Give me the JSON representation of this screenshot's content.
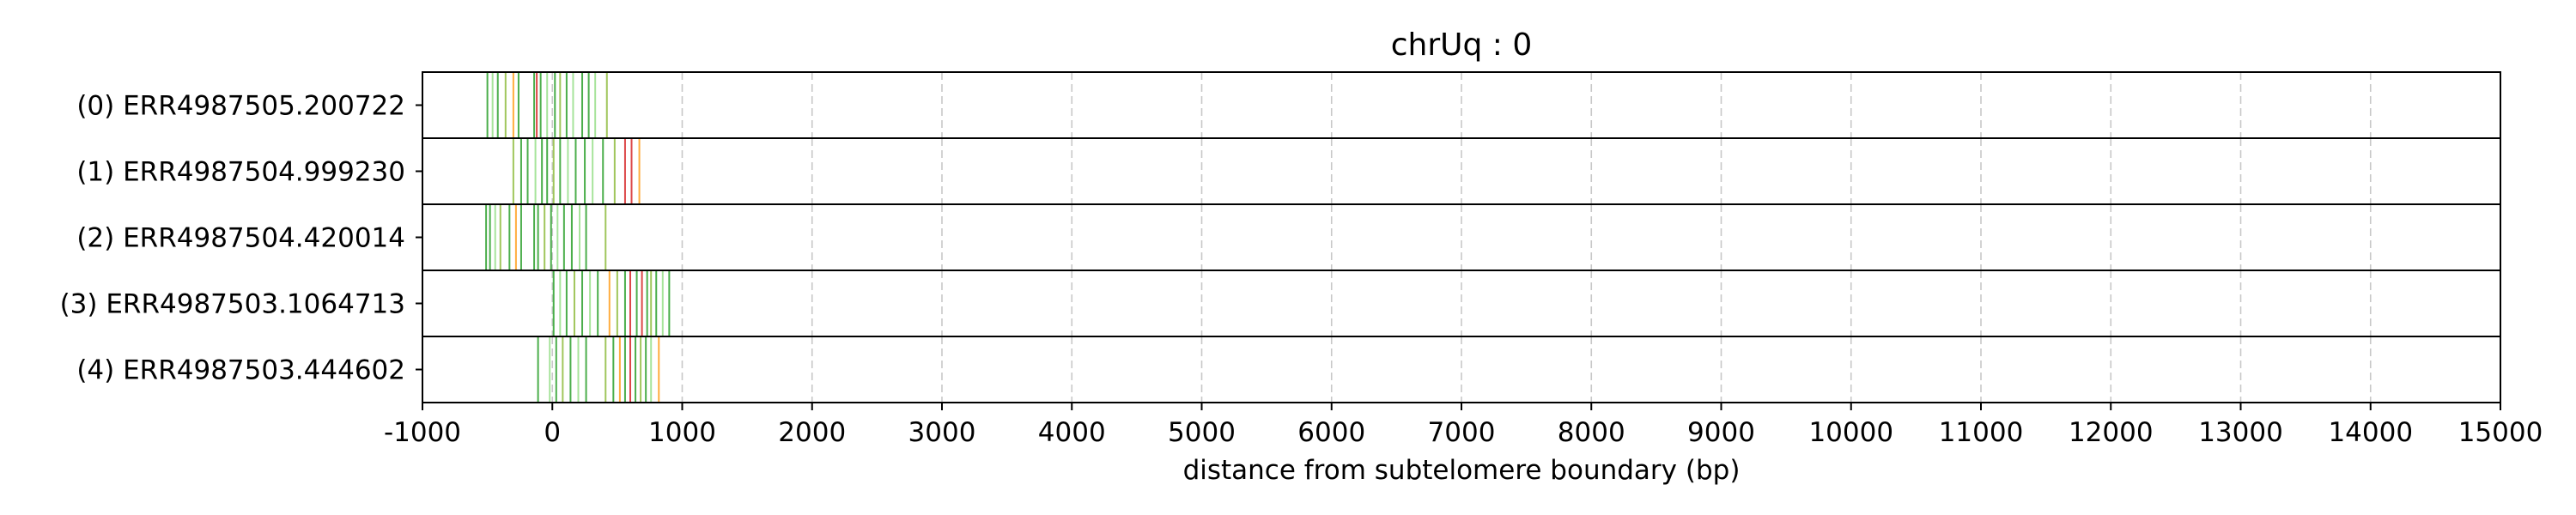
{
  "chart_data": {
    "type": "tick-track",
    "title": "chrUq : 0",
    "xlabel": "distance from subtelomere boundary (bp)",
    "xlim": [
      -1000,
      15000
    ],
    "xticks": [
      -1000,
      0,
      1000,
      2000,
      3000,
      4000,
      5000,
      6000,
      7000,
      8000,
      9000,
      10000,
      11000,
      12000,
      13000,
      14000,
      15000
    ],
    "xtick_labels": [
      "-1000",
      "0",
      "1000",
      "2000",
      "3000",
      "4000",
      "5000",
      "6000",
      "7000",
      "8000",
      "9000",
      "10000",
      "11000",
      "12000",
      "13000",
      "14000",
      "15000"
    ],
    "grid_x": true,
    "colors": {
      "green": "#2ca02c",
      "olive": "#8fbc3f",
      "orange": "#ff9f1c",
      "red": "#d62728",
      "lightgreen": "#98df8a",
      "grid": "#c8c8c8"
    },
    "reads": [
      {
        "label": "(0) ERR4987505.200722",
        "ticks": [
          {
            "x": -500,
            "c": "green"
          },
          {
            "x": -460,
            "c": "lightgreen"
          },
          {
            "x": -420,
            "c": "green"
          },
          {
            "x": -360,
            "c": "olive"
          },
          {
            "x": -300,
            "c": "orange"
          },
          {
            "x": -260,
            "c": "green"
          },
          {
            "x": -140,
            "c": "green"
          },
          {
            "x": -120,
            "c": "red"
          },
          {
            "x": -90,
            "c": "green"
          },
          {
            "x": -40,
            "c": "lightgreen"
          },
          {
            "x": 20,
            "c": "green"
          },
          {
            "x": 60,
            "c": "olive"
          },
          {
            "x": 110,
            "c": "green"
          },
          {
            "x": 160,
            "c": "lightgreen"
          },
          {
            "x": 230,
            "c": "green"
          },
          {
            "x": 280,
            "c": "green"
          },
          {
            "x": 330,
            "c": "lightgreen"
          },
          {
            "x": 420,
            "c": "olive"
          }
        ]
      },
      {
        "label": "(1) ERR4987504.999230",
        "ticks": [
          {
            "x": -300,
            "c": "olive"
          },
          {
            "x": -240,
            "c": "green"
          },
          {
            "x": -190,
            "c": "green"
          },
          {
            "x": -130,
            "c": "lightgreen"
          },
          {
            "x": -80,
            "c": "green"
          },
          {
            "x": -40,
            "c": "green"
          },
          {
            "x": 10,
            "c": "olive"
          },
          {
            "x": 60,
            "c": "green"
          },
          {
            "x": 120,
            "c": "lightgreen"
          },
          {
            "x": 180,
            "c": "green"
          },
          {
            "x": 250,
            "c": "green"
          },
          {
            "x": 310,
            "c": "lightgreen"
          },
          {
            "x": 390,
            "c": "green"
          },
          {
            "x": 480,
            "c": "olive"
          },
          {
            "x": 560,
            "c": "red"
          },
          {
            "x": 610,
            "c": "red"
          },
          {
            "x": 670,
            "c": "orange"
          }
        ]
      },
      {
        "label": "(2) ERR4987504.420014",
        "ticks": [
          {
            "x": -510,
            "c": "green"
          },
          {
            "x": -480,
            "c": "green"
          },
          {
            "x": -440,
            "c": "lightgreen"
          },
          {
            "x": -400,
            "c": "olive"
          },
          {
            "x": -330,
            "c": "green"
          },
          {
            "x": -280,
            "c": "orange"
          },
          {
            "x": -240,
            "c": "green"
          },
          {
            "x": -140,
            "c": "green"
          },
          {
            "x": -110,
            "c": "green"
          },
          {
            "x": -60,
            "c": "olive"
          },
          {
            "x": -10,
            "c": "green"
          },
          {
            "x": 40,
            "c": "lightgreen"
          },
          {
            "x": 90,
            "c": "green"
          },
          {
            "x": 150,
            "c": "green"
          },
          {
            "x": 210,
            "c": "lightgreen"
          },
          {
            "x": 260,
            "c": "green"
          },
          {
            "x": 410,
            "c": "olive"
          }
        ]
      },
      {
        "label": "(3) ERR4987503.1064713",
        "ticks": [
          {
            "x": 10,
            "c": "green"
          },
          {
            "x": 60,
            "c": "lightgreen"
          },
          {
            "x": 110,
            "c": "green"
          },
          {
            "x": 170,
            "c": "olive"
          },
          {
            "x": 230,
            "c": "green"
          },
          {
            "x": 290,
            "c": "lightgreen"
          },
          {
            "x": 350,
            "c": "green"
          },
          {
            "x": 440,
            "c": "orange"
          },
          {
            "x": 500,
            "c": "olive"
          },
          {
            "x": 560,
            "c": "green"
          },
          {
            "x": 600,
            "c": "red"
          },
          {
            "x": 650,
            "c": "green"
          },
          {
            "x": 690,
            "c": "red"
          },
          {
            "x": 730,
            "c": "green"
          },
          {
            "x": 760,
            "c": "olive"
          },
          {
            "x": 800,
            "c": "green"
          },
          {
            "x": 850,
            "c": "lightgreen"
          },
          {
            "x": 900,
            "c": "green"
          }
        ]
      },
      {
        "label": "(4) ERR4987503.444602",
        "ticks": [
          {
            "x": -110,
            "c": "green"
          },
          {
            "x": -20,
            "c": "lightgreen"
          },
          {
            "x": 30,
            "c": "green"
          },
          {
            "x": 80,
            "c": "olive"
          },
          {
            "x": 140,
            "c": "green"
          },
          {
            "x": 200,
            "c": "lightgreen"
          },
          {
            "x": 260,
            "c": "green"
          },
          {
            "x": 410,
            "c": "olive"
          },
          {
            "x": 470,
            "c": "green"
          },
          {
            "x": 520,
            "c": "orange"
          },
          {
            "x": 560,
            "c": "green"
          },
          {
            "x": 600,
            "c": "red"
          },
          {
            "x": 640,
            "c": "green"
          },
          {
            "x": 680,
            "c": "olive"
          },
          {
            "x": 720,
            "c": "green"
          },
          {
            "x": 760,
            "c": "lightgreen"
          },
          {
            "x": 820,
            "c": "orange"
          }
        ]
      }
    ]
  }
}
